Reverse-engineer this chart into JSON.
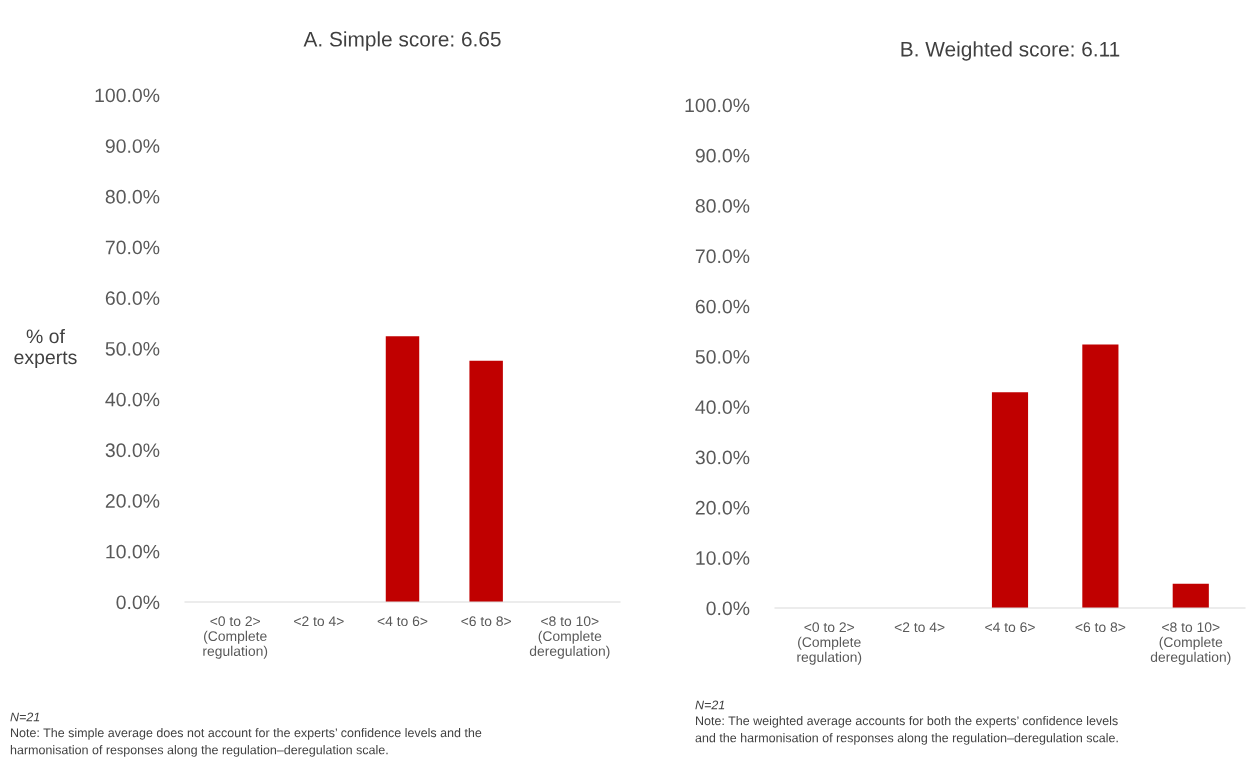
{
  "chart_data": [
    {
      "type": "bar",
      "title": "A. Simple score: 6.65",
      "ylabel": "% of\nexperts",
      "categories": [
        "<0 to 2>\n(Complete\nregulation)",
        "<2 to 4>",
        "<4 to 6>",
        "<6 to 8>",
        "<8 to 10>\n(Complete\nderegulation)"
      ],
      "values": [
        0,
        0,
        52.4,
        47.6,
        0
      ],
      "color": "#c00000",
      "ylim": [
        0,
        100
      ],
      "yticks": [
        {
          "value": 0,
          "label": "0.0%"
        },
        {
          "value": 10,
          "label": "10.0%"
        },
        {
          "value": 20,
          "label": "20.0%"
        },
        {
          "value": 30,
          "label": "30.0%"
        },
        {
          "value": 40,
          "label": "40.0%"
        },
        {
          "value": 50,
          "label": "50.0%"
        },
        {
          "value": 60,
          "label": "60.0%"
        },
        {
          "value": 70,
          "label": "70.0%"
        },
        {
          "value": 80,
          "label": "80.0%"
        },
        {
          "value": 90,
          "label": "90.0%"
        },
        {
          "value": 100,
          "label": "100.0%"
        }
      ],
      "grid": false,
      "annotations": [
        "N=21",
        "Note: The simple average does not account for the experts’ confidence levels and the harmonisation of responses along the regulation–deregulation scale."
      ]
    },
    {
      "type": "bar",
      "title": "B. Weighted score: 6.11",
      "categories": [
        "<0 to 2>\n(Complete\nregulation)",
        "<2 to 4>",
        "<4 to 6>",
        "<6 to 8>",
        "<8 to 10>\n(Complete\nderegulation)"
      ],
      "values": [
        0,
        0,
        42.9,
        52.4,
        4.8
      ],
      "color": "#c00000",
      "ylim": [
        0,
        100
      ],
      "yticks": [
        {
          "value": 0,
          "label": "0.0%"
        },
        {
          "value": 10,
          "label": "10.0%"
        },
        {
          "value": 20,
          "label": "20.0%"
        },
        {
          "value": 30,
          "label": "30.0%"
        },
        {
          "value": 40,
          "label": "40.0%"
        },
        {
          "value": 50,
          "label": "50.0%"
        },
        {
          "value": 60,
          "label": "60.0%"
        },
        {
          "value": 70,
          "label": "70.0%"
        },
        {
          "value": 80,
          "label": "80.0%"
        },
        {
          "value": 90,
          "label": "90.0%"
        },
        {
          "value": 100,
          "label": "100.0%"
        }
      ],
      "grid": false,
      "annotations": [
        "N=21",
        "Note: The weighted average accounts for both the experts’ confidence levels and the harmonisation of responses along the regulation–deregulation scale."
      ]
    }
  ]
}
